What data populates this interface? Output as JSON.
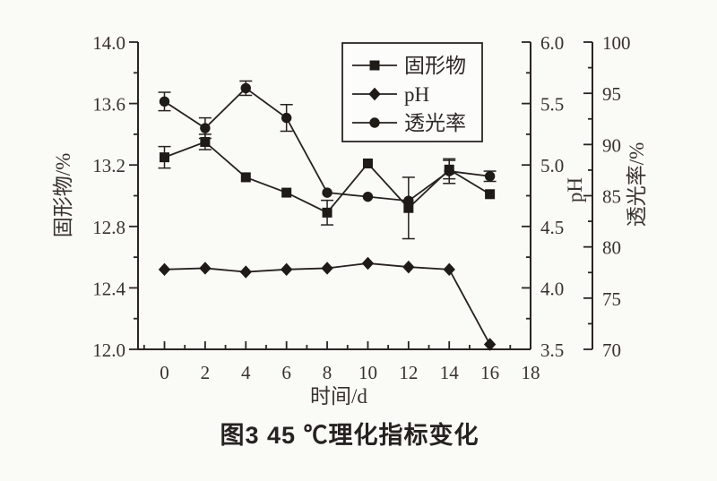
{
  "figure": {
    "background": "#fafaf7",
    "ink": "#2a2521"
  },
  "chart_data": {
    "type": "line",
    "title": "图3  45 ℃理化指标变化",
    "x_values": [
      0,
      2,
      4,
      6,
      8,
      10,
      12,
      14,
      16
    ],
    "series": [
      {
        "id": "solid-content",
        "name": "固形物",
        "axis": "left",
        "marker": "square",
        "values": [
          13.25,
          13.35,
          13.12,
          13.02,
          12.89,
          13.21,
          12.92,
          13.17,
          13.01
        ],
        "errors": [
          0.07,
          0.05,
          0,
          0,
          0.08,
          0,
          0.2,
          0.06,
          0
        ]
      },
      {
        "id": "ph",
        "name": "pH",
        "axis": "ph",
        "marker": "diamond",
        "values": [
          4.15,
          4.16,
          4.13,
          4.15,
          4.16,
          4.2,
          4.17,
          4.15,
          3.54
        ],
        "errors": [
          0,
          0,
          0,
          0,
          0,
          0,
          0,
          0,
          0
        ]
      },
      {
        "id": "transmittance",
        "name": "透光率",
        "axis": "trans",
        "marker": "circle",
        "values": [
          94.2,
          91.6,
          95.5,
          92.6,
          85.3,
          84.9,
          84.5,
          87.4,
          86.9
        ],
        "errors": [
          0.9,
          1.0,
          0.7,
          1.3,
          0,
          0,
          0,
          1.2,
          0.5
        ]
      }
    ],
    "axes": {
      "x": {
        "label": "时间/d",
        "min": -1.3,
        "max": 18,
        "major_ticks": [
          0,
          2,
          4,
          6,
          8,
          10,
          12,
          14,
          16,
          18
        ],
        "minor_ticks": [
          -1,
          1,
          3,
          5,
          7,
          9,
          11,
          13,
          15,
          17
        ],
        "decimals": 0
      },
      "left": {
        "label": "固形物/%",
        "min": 12,
        "max": 14,
        "major_ticks": [
          12,
          12.4,
          12.8,
          13.2,
          13.6,
          14
        ],
        "minor_ticks": [
          12.2,
          12.6,
          13,
          13.4,
          13.8
        ],
        "decimals": 1
      },
      "ph": {
        "label": "pH",
        "min": 3.5,
        "max": 6,
        "major_ticks": [
          3.5,
          4,
          4.5,
          5,
          5.5,
          6
        ],
        "minor_ticks": [
          3.75,
          4.25,
          4.75,
          5.25,
          5.75
        ],
        "decimals": 1
      },
      "trans": {
        "label": "透光率/%",
        "min": 70,
        "max": 100,
        "major_ticks": [
          70,
          75,
          80,
          85,
          90,
          95,
          100
        ],
        "minor_ticks": [
          72.5,
          77.5,
          82.5,
          87.5,
          92.5,
          97.5
        ],
        "decimals": 0
      }
    },
    "legend": {
      "position": "top-right"
    },
    "grid": false
  }
}
